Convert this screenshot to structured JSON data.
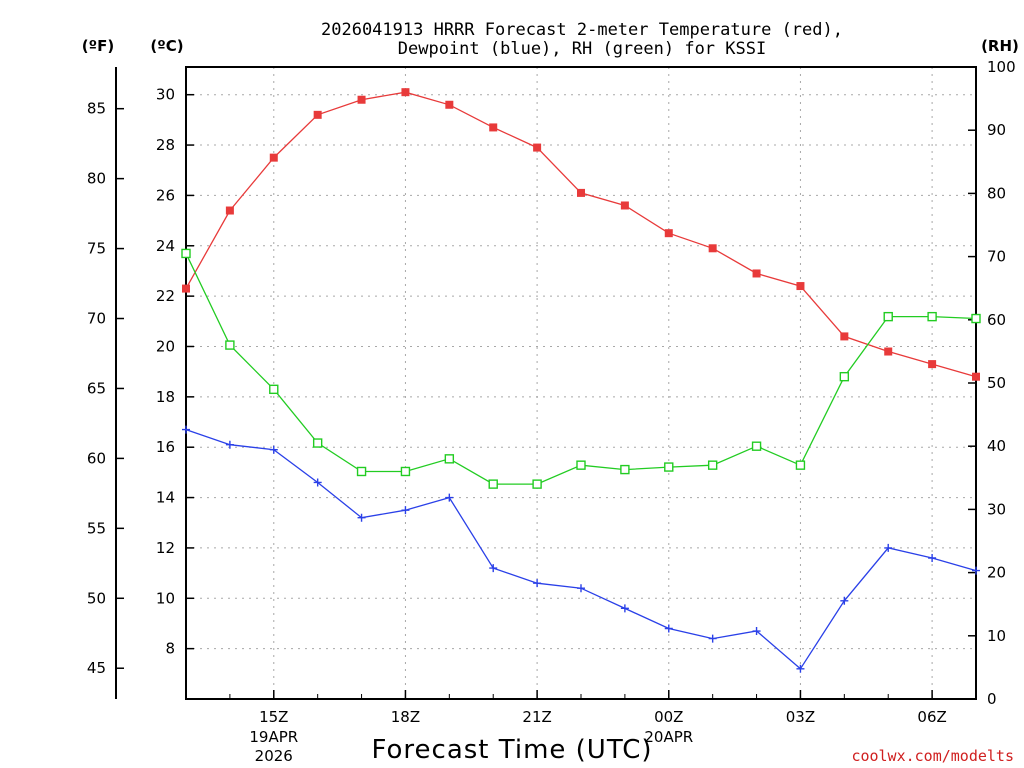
{
  "chart_data": {
    "type": "line",
    "title_lines": [
      "2026041913 HRRR Forecast 2-meter Temperature (red),",
      "Dewpoint (blue), RH (green) for KSSI"
    ],
    "xlabel": "Forecast Time (UTC)",
    "credit": "coolwx.com/modelts",
    "axis_units": {
      "fahrenheit": "(ºF)",
      "celsius": "(ºC)",
      "rh": "(RH)"
    },
    "x_hours": [
      13,
      14,
      15,
      16,
      17,
      18,
      19,
      20,
      21,
      22,
      23,
      24,
      25,
      26,
      27,
      28,
      29,
      30,
      31
    ],
    "x_range": [
      13,
      31
    ],
    "x_ticks": [
      {
        "hour": 15,
        "label": "15Z",
        "date_lines": [
          "19APR",
          "2026"
        ]
      },
      {
        "hour": 18,
        "label": "18Z",
        "date_lines": []
      },
      {
        "hour": 21,
        "label": "21Z",
        "date_lines": []
      },
      {
        "hour": 24,
        "label": "00Z",
        "date_lines": [
          "20APR"
        ]
      },
      {
        "hour": 27,
        "label": "03Z",
        "date_lines": []
      },
      {
        "hour": 30,
        "label": "06Z",
        "date_lines": []
      }
    ],
    "celsius_range": [
      6.0,
      31.1
    ],
    "celsius_ticks": [
      "8",
      "10",
      "12",
      "14",
      "16",
      "18",
      "20",
      "22",
      "24",
      "26",
      "28",
      "30"
    ],
    "fahrenheit_ticks": [
      "45",
      "50",
      "55",
      "60",
      "65",
      "70",
      "75",
      "80",
      "85"
    ],
    "rh_range": [
      0,
      100
    ],
    "rh_ticks": [
      "0",
      "10",
      "20",
      "30",
      "40",
      "50",
      "60",
      "70",
      "80",
      "90",
      "100"
    ],
    "series": [
      {
        "name": "Temperature",
        "axis": "celsius",
        "color": "#e83a3a",
        "marker": "filled-square",
        "values": [
          22.3,
          25.4,
          27.5,
          29.2,
          29.8,
          30.1,
          29.6,
          28.7,
          27.9,
          26.1,
          25.6,
          24.5,
          23.9,
          22.9,
          22.4,
          20.4,
          19.8,
          19.3,
          18.8
        ]
      },
      {
        "name": "Dewpoint",
        "axis": "celsius",
        "color": "#2a40e8",
        "marker": "plus",
        "values": [
          16.7,
          16.1,
          15.9,
          14.6,
          13.2,
          13.5,
          14.0,
          11.2,
          10.6,
          10.4,
          9.6,
          8.8,
          8.4,
          8.7,
          7.2,
          9.9,
          12.0,
          11.6,
          11.1
        ]
      },
      {
        "name": "RH",
        "axis": "rh",
        "color": "#22cc22",
        "marker": "open-square",
        "values": [
          70.5,
          56.0,
          49.0,
          40.5,
          36.0,
          36.0,
          38.0,
          34.0,
          34.0,
          37.0,
          36.3,
          36.7,
          37.0,
          40.0,
          37.0,
          51.0,
          60.5,
          60.5,
          60.2
        ]
      }
    ]
  }
}
